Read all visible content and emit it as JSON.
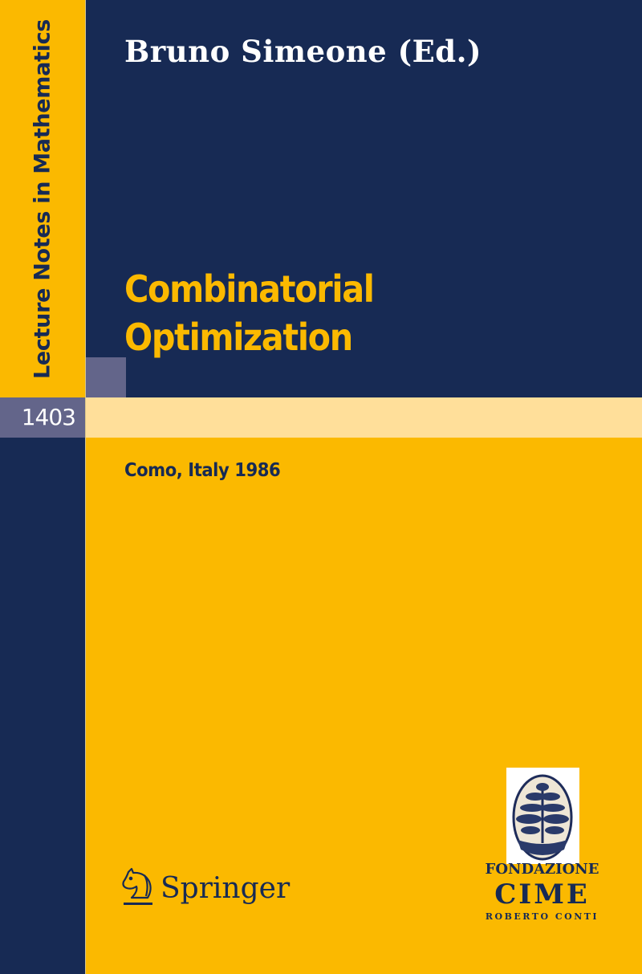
{
  "cover": {
    "series": "Lecture Notes in Mathematics",
    "volume": "1403",
    "editor": "Bruno Simeone (Ed.)",
    "title_line1": "Combinatorial",
    "title_line2": "Optimization",
    "place_year": "Como, Italy 1986",
    "publisher": "Springer",
    "publisher_logo_icon": "knight-horse-icon",
    "foundation": {
      "line1": "Fondazione",
      "line2": "CIME",
      "line3": "Roberto Conti",
      "emblem_icon": "tree-emblem-icon"
    }
  },
  "colors": {
    "navy": "#172a54",
    "yellow": "#fbb900",
    "gray": "#63658a",
    "cream": "#ffdf9a"
  }
}
